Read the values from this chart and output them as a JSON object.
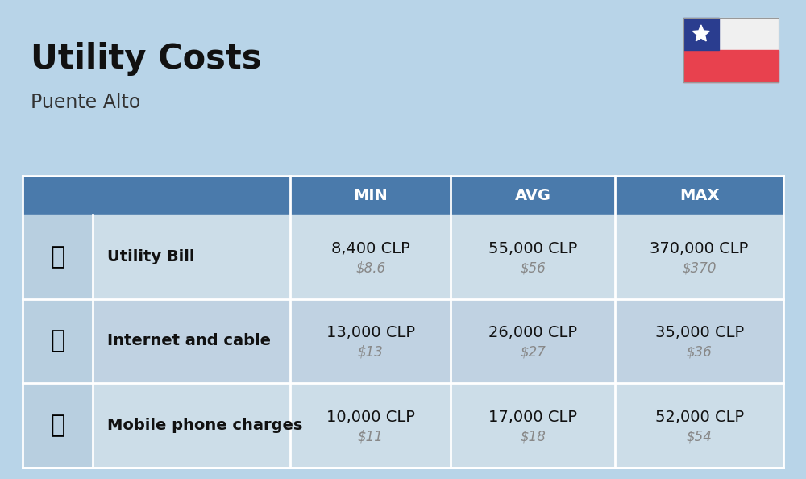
{
  "title": "Utility Costs",
  "subtitle": "Puente Alto",
  "background_color": "#b8d4e8",
  "header_color": "#4a7aab",
  "header_text_color": "#ffffff",
  "row_colors": [
    "#ccdde8",
    "#c0d2e2"
  ],
  "icon_col_color": "#b8cfe0",
  "columns": [
    "MIN",
    "AVG",
    "MAX"
  ],
  "rows": [
    {
      "label": "Utility Bill",
      "min_clp": "8,400 CLP",
      "min_usd": "$8.6",
      "avg_clp": "55,000 CLP",
      "avg_usd": "$56",
      "max_clp": "370,000 CLP",
      "max_usd": "$370"
    },
    {
      "label": "Internet and cable",
      "min_clp": "13,000 CLP",
      "min_usd": "$13",
      "avg_clp": "26,000 CLP",
      "avg_usd": "$27",
      "max_clp": "35,000 CLP",
      "max_usd": "$36"
    },
    {
      "label": "Mobile phone charges",
      "min_clp": "10,000 CLP",
      "min_usd": "$11",
      "avg_clp": "17,000 CLP",
      "avg_usd": "$18",
      "max_clp": "52,000 CLP",
      "max_usd": "$54"
    }
  ],
  "flag": {
    "white_color": "#f0f0f0",
    "red_color": "#e8414e",
    "blue_color": "#2a3d8f",
    "star_color": "#ffffff"
  },
  "title_fontsize": 30,
  "subtitle_fontsize": 17,
  "header_fontsize": 14,
  "label_fontsize": 14,
  "value_fontsize": 14,
  "usd_fontsize": 12
}
